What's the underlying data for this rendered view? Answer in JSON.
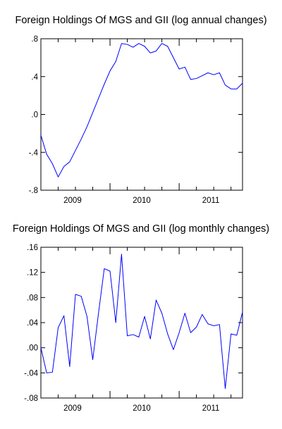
{
  "chart_data": [
    {
      "type": "line",
      "title": "Foreign Holdings Of MGS and GII (log annual changes)",
      "xlabel": "",
      "ylabel": "",
      "xlim": [
        "2009-01",
        "2011-12"
      ],
      "ylim": [
        -0.8,
        0.8
      ],
      "yticks": [
        -0.8,
        -0.4,
        0.0,
        0.4,
        0.8
      ],
      "ytick_labels": [
        "-.8",
        "-.4",
        ".0",
        ".4",
        ".8"
      ],
      "xtick_labels": [
        "2009",
        "2010",
        "2011"
      ],
      "grid": false,
      "line_color": "#0000ff",
      "series": [
        {
          "x": [
            "2009-01",
            "2009-02",
            "2009-03",
            "2009-04",
            "2009-05",
            "2009-06",
            "2009-07",
            "2009-08",
            "2009-09",
            "2009-10",
            "2009-11",
            "2009-12",
            "2010-01",
            "2010-02",
            "2010-03",
            "2010-04",
            "2010-05",
            "2010-06",
            "2010-07",
            "2010-08",
            "2010-09",
            "2010-10",
            "2010-11",
            "2010-12",
            "2011-01",
            "2011-02",
            "2011-03",
            "2011-04",
            "2011-05",
            "2011-06",
            "2011-07",
            "2011-08",
            "2011-09",
            "2011-10",
            "2011-11",
            "2011-12"
          ],
          "values": [
            -0.22,
            -0.42,
            -0.52,
            -0.66,
            -0.55,
            -0.5,
            -0.38,
            -0.26,
            -0.13,
            0.02,
            0.17,
            0.32,
            0.46,
            0.56,
            0.75,
            0.74,
            0.71,
            0.75,
            0.72,
            0.65,
            0.67,
            0.75,
            0.72,
            0.6,
            0.48,
            0.5,
            0.37,
            0.38,
            0.41,
            0.44,
            0.42,
            0.44,
            0.31,
            0.27,
            0.27,
            0.33
          ]
        }
      ]
    },
    {
      "type": "line",
      "title": "Foreign Holdings Of MGS and GII (log monthly changes)",
      "xlabel": "",
      "ylabel": "",
      "xlim": [
        "2009-01",
        "2011-12"
      ],
      "ylim": [
        -0.08,
        0.16
      ],
      "yticks": [
        -0.08,
        -0.04,
        0.0,
        0.04,
        0.08,
        0.12,
        0.16
      ],
      "ytick_labels": [
        "-.08",
        "-.04",
        ".00",
        ".04",
        ".08",
        ".12",
        ".16"
      ],
      "xtick_labels": [
        "2009",
        "2010",
        "2011"
      ],
      "grid": false,
      "line_color": "#0000ff",
      "series": [
        {
          "x": [
            "2009-01",
            "2009-02",
            "2009-03",
            "2009-04",
            "2009-05",
            "2009-06",
            "2009-07",
            "2009-08",
            "2009-09",
            "2009-10",
            "2009-11",
            "2009-12",
            "2010-01",
            "2010-02",
            "2010-03",
            "2010-04",
            "2010-05",
            "2010-06",
            "2010-07",
            "2010-08",
            "2010-09",
            "2010-10",
            "2010-11",
            "2010-12",
            "2011-01",
            "2011-02",
            "2011-03",
            "2011-04",
            "2011-05",
            "2011-06",
            "2011-07",
            "2011-08",
            "2011-09",
            "2011-10",
            "2011-11",
            "2011-12"
          ],
          "values": [
            0.0,
            -0.04,
            -0.039,
            0.032,
            0.051,
            -0.03,
            0.085,
            0.082,
            0.05,
            -0.019,
            0.055,
            0.126,
            0.122,
            0.04,
            0.149,
            0.019,
            0.021,
            0.017,
            0.05,
            0.014,
            0.076,
            0.055,
            0.022,
            -0.003,
            0.024,
            0.055,
            0.024,
            0.033,
            0.053,
            0.038,
            0.035,
            0.037,
            -0.065,
            0.022,
            0.02,
            0.057
          ]
        }
      ]
    }
  ]
}
